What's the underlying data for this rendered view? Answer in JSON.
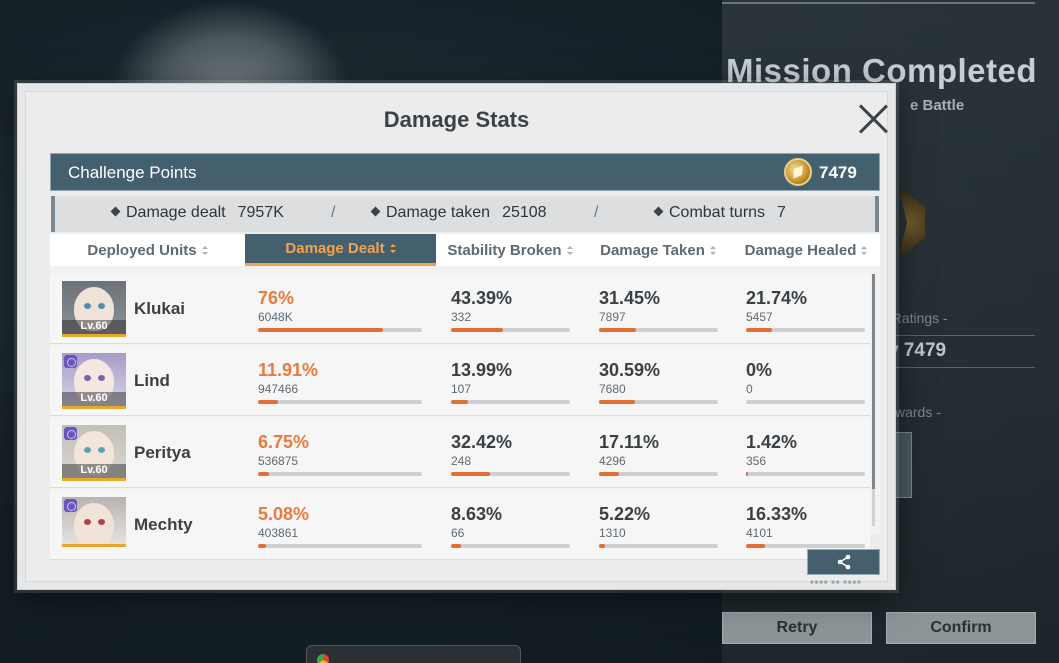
{
  "background": {
    "mission_title": "Mission Completed",
    "battle_text": "e Battle",
    "ratings_label": "d Ratings -",
    "legend_text": "ary 7479",
    "rewards_label": "wards -",
    "retry_label": "Retry",
    "confirm_label": "Confirm",
    "browser_tab_label": "▪▪▪▪▪▪▪"
  },
  "modal": {
    "title": "Damage Stats",
    "challenge_points_label": "Challenge Points",
    "challenge_points_value": "7479",
    "summary": {
      "damage_dealt_label": "Damage dealt",
      "damage_dealt_value": "7957K",
      "damage_taken_label": "Damage taken",
      "damage_taken_value": "25108",
      "combat_turns_label": "Combat turns",
      "combat_turns_value": "7",
      "separator": "/"
    },
    "columns": [
      "Deployed Units",
      "Damage Dealt",
      "Stability Broken",
      "Damage Taken",
      "Damage Healed"
    ],
    "active_column": "Damage Dealt",
    "units": [
      {
        "name": "Klukai",
        "level": "Lv.60",
        "damage_dealt": {
          "pct": "76%",
          "raw": "6048K",
          "fraction": 0.76
        },
        "stability_broken": {
          "pct": "43.39%",
          "raw": "332",
          "fraction": 0.4339
        },
        "damage_taken": {
          "pct": "31.45%",
          "raw": "7897",
          "fraction": 0.3145
        },
        "damage_healed": {
          "pct": "21.74%",
          "raw": "5457",
          "fraction": 0.2174
        }
      },
      {
        "name": "Lind",
        "level": "Lv.60",
        "damage_dealt": {
          "pct": "11.91%",
          "raw": "947466",
          "fraction": 0.1191
        },
        "stability_broken": {
          "pct": "13.99%",
          "raw": "107",
          "fraction": 0.1399
        },
        "damage_taken": {
          "pct": "30.59%",
          "raw": "7680",
          "fraction": 0.3059
        },
        "damage_healed": {
          "pct": "0%",
          "raw": "0",
          "fraction": 0
        }
      },
      {
        "name": "Perityа",
        "level": "Lv.60",
        "damage_dealt": {
          "pct": "6.75%",
          "raw": "536875",
          "fraction": 0.0675
        },
        "stability_broken": {
          "pct": "32.42%",
          "raw": "248",
          "fraction": 0.3242
        },
        "damage_taken": {
          "pct": "17.11%",
          "raw": "4296",
          "fraction": 0.1711
        },
        "damage_healed": {
          "pct": "1.42%",
          "raw": "356",
          "fraction": 0.0142
        }
      },
      {
        "name": "Mechty",
        "level": "",
        "damage_dealt": {
          "pct": "5.08%",
          "raw": "403861",
          "fraction": 0.0508
        },
        "stability_broken": {
          "pct": "8.63%",
          "raw": "66",
          "fraction": 0.0863
        },
        "damage_taken": {
          "pct": "5.22%",
          "raw": "1310",
          "fraction": 0.0522
        },
        "damage_healed": {
          "pct": "16.33%",
          "raw": "4101",
          "fraction": 0.1633
        }
      }
    ],
    "icons": {
      "close": "close-icon",
      "share": "share-icon",
      "challenge_points": "challenge-points-coin-icon"
    },
    "colors": {
      "accent_orange": "#ea7a3d",
      "header_teal": "#44606f",
      "bar_fill": "#e46f35"
    }
  }
}
